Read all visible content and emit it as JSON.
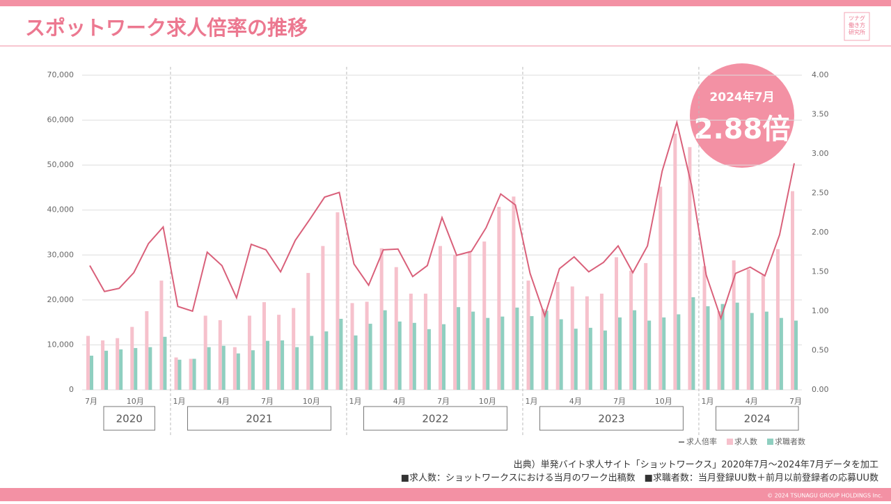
{
  "chart_data": {
    "type": "bar_line",
    "title": "スポットワーク求人倍率の推移",
    "logo": "ツナグ働き方研究所",
    "badge": {
      "date": "2024年7月",
      "value_label": "2.88倍"
    },
    "categories": [
      "7月",
      null,
      null,
      "10月",
      null,
      null,
      "1月",
      null,
      null,
      "4月",
      null,
      null,
      "7月",
      null,
      null,
      "10月",
      null,
      null,
      "1月",
      null,
      null,
      "4月",
      null,
      null,
      "7月",
      null,
      null,
      "10月",
      null,
      null,
      "1月",
      null,
      null,
      "4月",
      null,
      null,
      "7月",
      null,
      null,
      "10月",
      null,
      null,
      "1月",
      null,
      null,
      "4月",
      null,
      null,
      "7月"
    ],
    "years": [
      "2020",
      "2021",
      "2022",
      "2023",
      "2024"
    ],
    "series": [
      {
        "name": "求人倍率",
        "color": "#d9607a",
        "axis": "y2",
        "values": [
          1.58,
          1.25,
          1.29,
          1.49,
          1.86,
          2.07,
          1.06,
          1.0,
          1.75,
          1.58,
          1.17,
          1.85,
          1.78,
          1.5,
          1.9,
          2.17,
          2.45,
          2.51,
          1.6,
          1.33,
          1.78,
          1.79,
          1.44,
          1.58,
          2.19,
          1.71,
          1.76,
          2.06,
          2.49,
          2.35,
          1.48,
          0.94,
          1.54,
          1.69,
          1.5,
          1.62,
          1.83,
          1.49,
          1.83,
          2.78,
          3.4,
          2.6,
          1.46,
          0.91,
          1.48,
          1.56,
          1.45,
          1.97,
          2.88
        ]
      },
      {
        "name": "求人数",
        "color": "#f6c1cc",
        "values": [
          12000,
          11000,
          11500,
          14000,
          17500,
          24300,
          7200,
          6900,
          16500,
          15500,
          9500,
          16500,
          19500,
          16700,
          18200,
          26000,
          32000,
          39500,
          19300,
          19600,
          31500,
          27300,
          21400,
          21400,
          32000,
          30000,
          30800,
          33000,
          40700,
          43000,
          24300,
          18000,
          24000,
          23000,
          20800,
          21400,
          29500,
          26500,
          28200,
          45200,
          57000,
          54000,
          27500,
          17500,
          28800,
          26800,
          25500,
          31300,
          44200
        ]
      },
      {
        "name": "求職者数",
        "color": "#8fcfc0",
        "values": [
          7600,
          8700,
          9000,
          9300,
          9500,
          11800,
          6700,
          6900,
          9500,
          9800,
          8100,
          8800,
          10900,
          11000,
          9500,
          12000,
          13000,
          15800,
          12100,
          14700,
          17700,
          15200,
          14900,
          13500,
          14600,
          18400,
          17400,
          16000,
          16300,
          18300,
          16400,
          17600,
          15700,
          13600,
          13800,
          13200,
          16100,
          17700,
          15400,
          16100,
          16800,
          20600,
          18600,
          19100,
          19400,
          17100,
          17400,
          16000,
          15400
        ]
      }
    ],
    "ylim": [
      0,
      70000
    ],
    "yticks": [
      0,
      {
        "value": 10000,
        "label": "10,000"
      },
      {
        "value": 20000,
        "label": "20,000"
      },
      {
        "value": 30000,
        "label": "30,000"
      },
      {
        "value": 40000,
        "label": "40,000"
      },
      {
        "value": 50000,
        "label": "50,000"
      },
      {
        "value": 60000,
        "label": "60,000"
      },
      {
        "value": 70000,
        "label": "70,000"
      }
    ],
    "y2lim": [
      0,
      4
    ],
    "y2ticks": [
      {
        "value": 0,
        "label": "0.00"
      },
      {
        "value": 0.5,
        "label": "0.50"
      },
      {
        "value": 1,
        "label": "1.00"
      },
      {
        "value": 1.5,
        "label": "1.50"
      },
      {
        "value": 2,
        "label": "2.00"
      },
      {
        "value": 2.5,
        "label": "2.50"
      },
      {
        "value": 3,
        "label": "3.00"
      },
      {
        "value": 3.5,
        "label": "3.50"
      },
      {
        "value": 4,
        "label": "4.00"
      }
    ],
    "grid": true,
    "legend": "bottom-right",
    "source": [
      "出典）単発バイト求人サイト「ショットワークス」2020年7月～2024年7月データを加工",
      "■求人数：ショットワークスにおける当月のワーク出稿数　■求職者数：当月登録UU数＋前月以前登録者の応募UU数"
    ],
    "copyright": "© 2024 TSUNAGU GROUP HOLDINGS Inc."
  }
}
